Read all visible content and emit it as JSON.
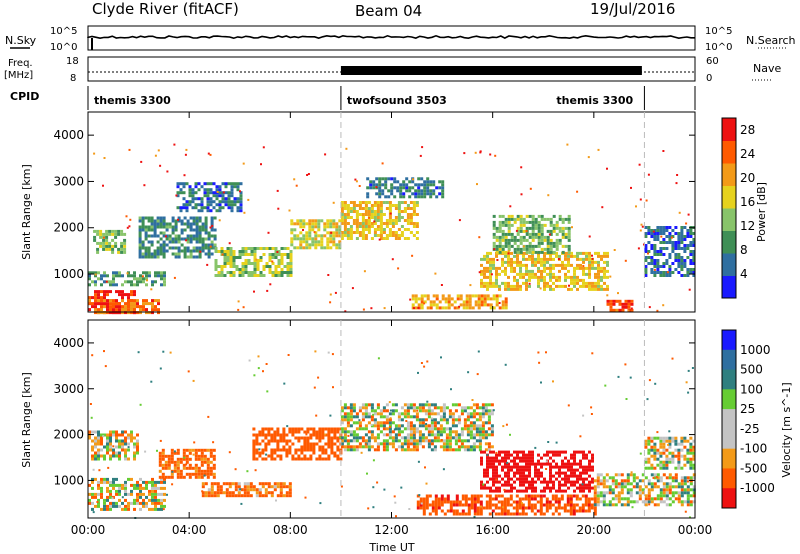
{
  "header": {
    "site": "Clyde River (fitACF)",
    "beam": "Beam 04",
    "date": "19/Jul/2016"
  },
  "status_panels": {
    "nsky_label": "N.Sky",
    "nsearch_label": "N.Search",
    "noise_ticks_left": [
      "10^5",
      "10^0"
    ],
    "noise_ticks_right": [
      "10^5",
      "10^0"
    ],
    "freq_label_top": "Freq.",
    "freq_label_unit": "[MHz]",
    "freq_ticks": [
      "18",
      "8"
    ],
    "nave_label": "Nave",
    "nave_ticks": [
      "60",
      "0"
    ],
    "cpid_label": "CPID",
    "cpid_segments": [
      {
        "label": "themis 3300",
        "start_hr": 0,
        "end_hr": 10
      },
      {
        "label": "twofsound 3503",
        "start_hr": 10,
        "end_hr": 22
      },
      {
        "label": "themis 3300",
        "start_hr": 22,
        "end_hr": 24
      }
    ]
  },
  "colors": {
    "power_scale": [
      "#1a1aff",
      "#2f6fa0",
      "#3f8f56",
      "#88c46a",
      "#e6d21e",
      "#f39a18",
      "#ff5a00",
      "#ee1111"
    ],
    "velocity_scale": [
      "#ee1111",
      "#ff5a00",
      "#f39a18",
      "#c4c4c4",
      "#c4c4c4",
      "#66cc33",
      "#2f7f7f",
      "#2f6fa0",
      "#1a1aff"
    ]
  },
  "chart_data": [
    {
      "type": "heatmap",
      "title": "",
      "xlabel": "",
      "ylabel": "Slant Range [km]",
      "x_range_hr": [
        0,
        24
      ],
      "ylim": [
        180,
        4500
      ],
      "y_ticks": [
        "1000",
        "2000",
        "3000",
        "4000"
      ],
      "x_ticks": [
        "00:00",
        "04:00",
        "08:00",
        "12:00",
        "16:00",
        "20:00",
        "00:00"
      ],
      "colorbar_label": "Power [dB]",
      "colorbar_ticks": [
        "4",
        "8",
        "12",
        "16",
        "20",
        "24",
        "28"
      ],
      "colorbar_range": [
        0,
        30
      ],
      "regions": [
        {
          "t0": 0.0,
          "t1": 1.8,
          "r0": 200,
          "r1": 700,
          "val": 27
        },
        {
          "t0": 0.0,
          "t1": 2.8,
          "r0": 200,
          "r1": 500,
          "val": 24
        },
        {
          "t0": 0.2,
          "t1": 1.4,
          "r0": 1500,
          "r1": 2000,
          "val": 12
        },
        {
          "t0": 0.0,
          "t1": 3.0,
          "r0": 800,
          "r1": 1100,
          "val": 10
        },
        {
          "t0": 2.0,
          "t1": 5.0,
          "r0": 1400,
          "r1": 2300,
          "val": 8
        },
        {
          "t0": 3.5,
          "t1": 6.0,
          "r0": 2400,
          "r1": 3000,
          "val": 6
        },
        {
          "t0": 5.0,
          "t1": 8.0,
          "r0": 1000,
          "r1": 1600,
          "val": 14
        },
        {
          "t0": 8.0,
          "t1": 10.0,
          "r0": 1600,
          "r1": 2200,
          "val": 16
        },
        {
          "t0": 10.0,
          "t1": 13.0,
          "r0": 1800,
          "r1": 2600,
          "val": 18
        },
        {
          "t0": 11.0,
          "t1": 14.0,
          "r0": 2700,
          "r1": 3100,
          "val": 7
        },
        {
          "t0": 12.8,
          "t1": 16.5,
          "r0": 300,
          "r1": 600,
          "val": 20
        },
        {
          "t0": 15.5,
          "t1": 20.5,
          "r0": 700,
          "r1": 1500,
          "val": 18
        },
        {
          "t0": 16.0,
          "t1": 19.0,
          "r0": 1500,
          "r1": 2300,
          "val": 12
        },
        {
          "t0": 20.5,
          "t1": 21.5,
          "r0": 250,
          "r1": 500,
          "val": 26
        },
        {
          "t0": 22.0,
          "t1": 24.0,
          "r0": 1000,
          "r1": 2100,
          "val": 6
        }
      ]
    },
    {
      "type": "heatmap",
      "title": "",
      "xlabel": "Time UT",
      "ylabel": "Slant Range [km]",
      "x_range_hr": [
        0,
        24
      ],
      "ylim": [
        180,
        4500
      ],
      "y_ticks": [
        "1000",
        "2000",
        "3000",
        "4000"
      ],
      "x_ticks": [
        "00:00",
        "04:00",
        "08:00",
        "12:00",
        "16:00",
        "20:00",
        "00:00"
      ],
      "colorbar_label": "Velocity [m s^-1]",
      "colorbar_ticks": [
        "1000",
        "500",
        "100",
        "25",
        "-25",
        "-100",
        "-500",
        "-1000"
      ],
      "colorbar_range": [
        -1000,
        1000
      ],
      "regions": [
        {
          "t0": 0.0,
          "t1": 2.0,
          "r0": 1500,
          "r1": 2100,
          "val": 0
        },
        {
          "t0": 0.0,
          "t1": 3.0,
          "r0": 400,
          "r1": 1100,
          "val": 0
        },
        {
          "t0": 2.8,
          "t1": 5.0,
          "r0": 1100,
          "r1": 1700,
          "val": -200
        },
        {
          "t0": 4.5,
          "t1": 8.0,
          "r0": 700,
          "r1": 1000,
          "val": -150
        },
        {
          "t0": 6.5,
          "t1": 10.0,
          "r0": 1500,
          "r1": 2200,
          "val": -300
        },
        {
          "t0": 10.0,
          "t1": 16.0,
          "r0": 1700,
          "r1": 2700,
          "val": 0
        },
        {
          "t0": 13.0,
          "t1": 20.0,
          "r0": 300,
          "r1": 700,
          "val": -400
        },
        {
          "t0": 15.5,
          "t1": 20.0,
          "r0": 800,
          "r1": 1700,
          "val": -700
        },
        {
          "t0": 20.0,
          "t1": 24.0,
          "r0": 500,
          "r1": 1200,
          "val": 0
        },
        {
          "t0": 22.0,
          "t1": 24.0,
          "r0": 1300,
          "r1": 2000,
          "val": 0
        }
      ]
    }
  ]
}
